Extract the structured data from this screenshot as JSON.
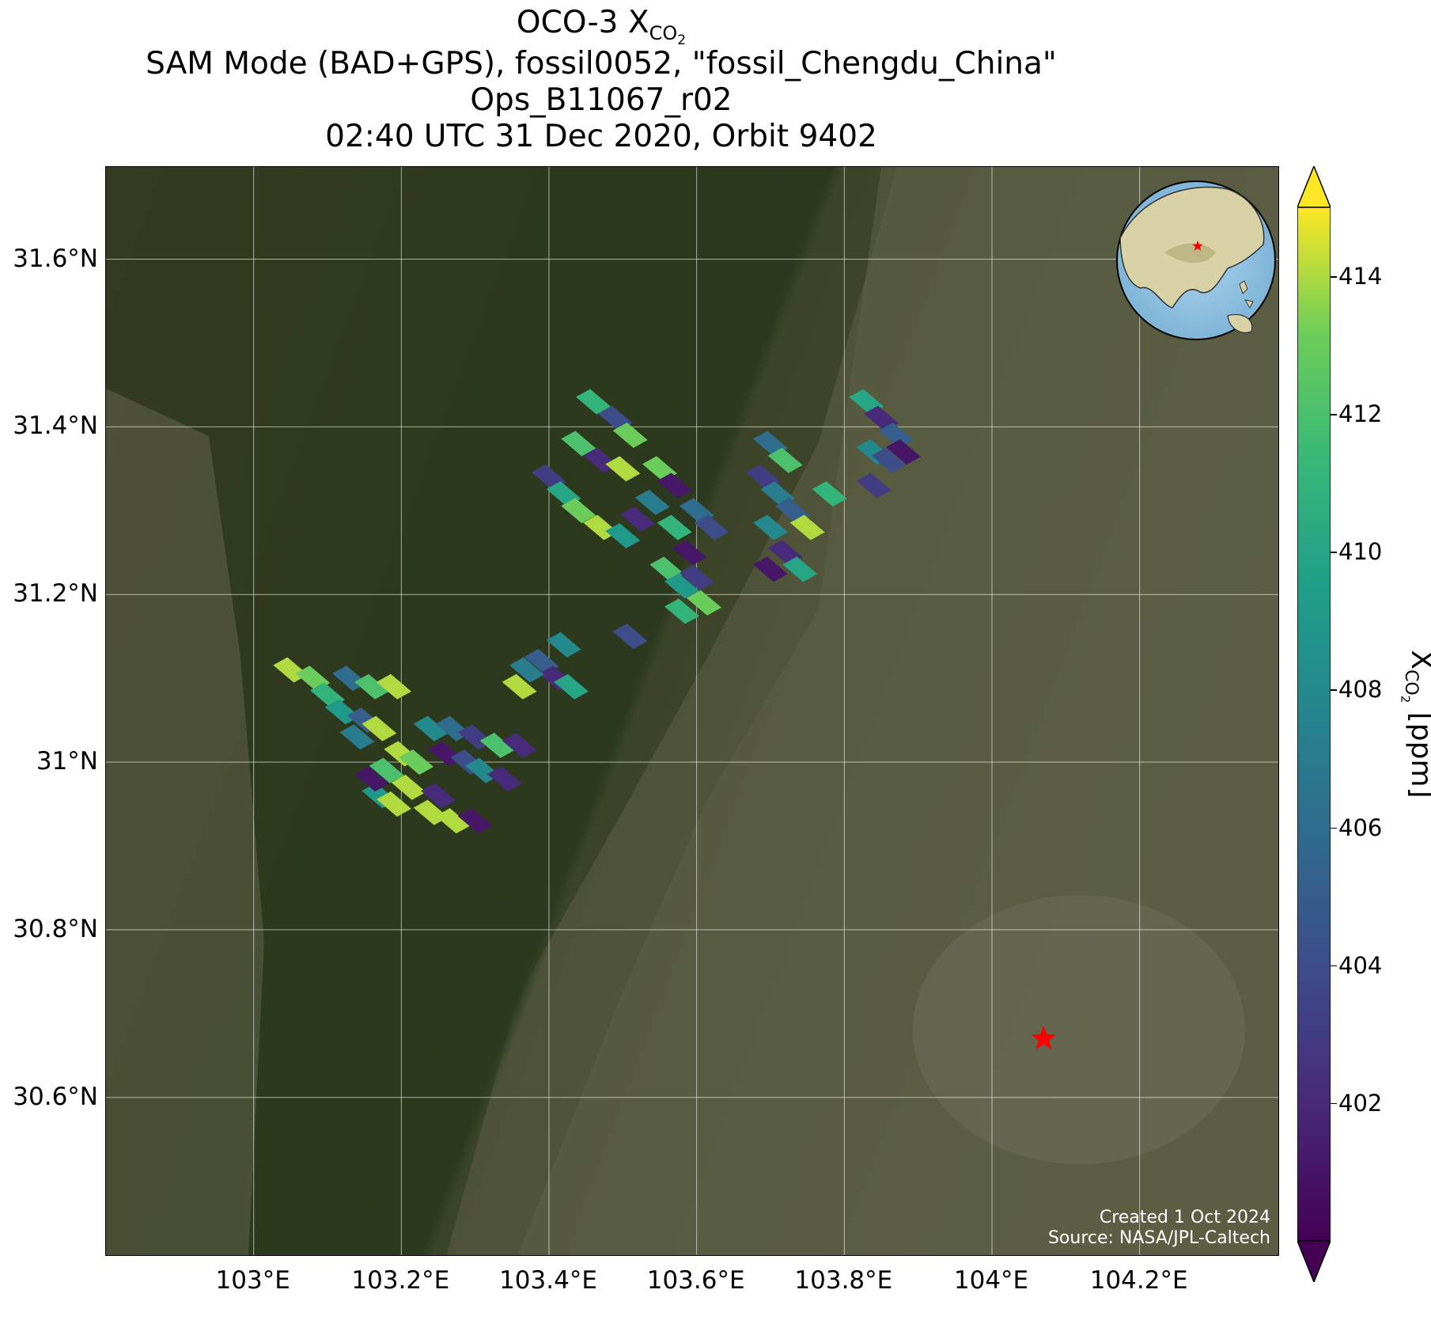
{
  "title": {
    "line1_main": "OCO-3 X",
    "line1_sub": "CO",
    "line1_subsub": "2",
    "line2": "SAM Mode (BAD+GPS), fossil0052, \"fossil_Chengdu_China\"",
    "line3": "Ops_B11067_r02",
    "line4": "02:40 UTC 31 Dec 2020, Orbit 9402"
  },
  "map": {
    "extent": {
      "lon_min": 102.8,
      "lon_max": 104.39,
      "lat_min": 30.41,
      "lat_max": 31.71
    },
    "lat_ticks": [
      {
        "value": 31.6,
        "label": "31.6°N"
      },
      {
        "value": 31.4,
        "label": "31.4°N"
      },
      {
        "value": 31.2,
        "label": "31.2°N"
      },
      {
        "value": 31.0,
        "label": "31°N"
      },
      {
        "value": 30.8,
        "label": "30.8°N"
      },
      {
        "value": 30.6,
        "label": "30.6°N"
      }
    ],
    "lon_ticks": [
      {
        "value": 103.0,
        "label": "103°E"
      },
      {
        "value": 103.2,
        "label": "103.2°E"
      },
      {
        "value": 103.4,
        "label": "103.4°E"
      },
      {
        "value": 103.6,
        "label": "103.6°E"
      },
      {
        "value": 103.8,
        "label": "103.8°E"
      },
      {
        "value": 104.0,
        "label": "104°E"
      },
      {
        "value": 104.2,
        "label": "104.2°E"
      }
    ],
    "target": {
      "name": "fossil_Chengdu_China",
      "lon": 104.07,
      "lat": 30.67,
      "color": "#ff0000",
      "marker": "star"
    },
    "credit_line1": "Created 1 Oct 2024",
    "credit_line2": "Source: NASA/JPL-Caltech",
    "inset_globe": {
      "marker_color": "#ff0000",
      "marker": "star"
    }
  },
  "colorbar": {
    "colormap": "viridis",
    "min": 400,
    "max": 415,
    "extend": "both",
    "ticks": [
      402,
      404,
      406,
      408,
      410,
      412,
      414
    ],
    "tick_labels": [
      "402",
      "404",
      "406",
      "408",
      "410",
      "412",
      "414"
    ],
    "label_main": "X",
    "label_sub": "CO",
    "label_subsub": "2",
    "label_unit": " [ppm]"
  },
  "chart_data": {
    "type": "heatmap",
    "variable": "XCO2",
    "units": "ppm",
    "soundings": [
      {
        "lon": 103.46,
        "lat": 31.43,
        "xco2": 411
      },
      {
        "lon": 103.49,
        "lat": 31.41,
        "xco2": 404
      },
      {
        "lon": 103.51,
        "lat": 31.39,
        "xco2": 413
      },
      {
        "lon": 103.44,
        "lat": 31.38,
        "xco2": 412
      },
      {
        "lon": 103.47,
        "lat": 31.36,
        "xco2": 402
      },
      {
        "lon": 103.5,
        "lat": 31.35,
        "xco2": 414
      },
      {
        "lon": 103.4,
        "lat": 31.34,
        "xco2": 403
      },
      {
        "lon": 103.42,
        "lat": 31.32,
        "xco2": 410
      },
      {
        "lon": 103.44,
        "lat": 31.3,
        "xco2": 413
      },
      {
        "lon": 103.47,
        "lat": 31.28,
        "xco2": 414
      },
      {
        "lon": 103.55,
        "lat": 31.35,
        "xco2": 413
      },
      {
        "lon": 103.57,
        "lat": 31.33,
        "xco2": 401
      },
      {
        "lon": 103.54,
        "lat": 31.31,
        "xco2": 407
      },
      {
        "lon": 103.52,
        "lat": 31.29,
        "xco2": 402
      },
      {
        "lon": 103.5,
        "lat": 31.27,
        "xco2": 409
      },
      {
        "lon": 103.57,
        "lat": 31.28,
        "xco2": 411
      },
      {
        "lon": 103.6,
        "lat": 31.3,
        "xco2": 406
      },
      {
        "lon": 103.62,
        "lat": 31.28,
        "xco2": 404
      },
      {
        "lon": 103.59,
        "lat": 31.25,
        "xco2": 401
      },
      {
        "lon": 103.56,
        "lat": 31.23,
        "xco2": 412
      },
      {
        "lon": 103.58,
        "lat": 31.21,
        "xco2": 409
      },
      {
        "lon": 103.6,
        "lat": 31.22,
        "xco2": 403
      },
      {
        "lon": 103.58,
        "lat": 31.18,
        "xco2": 411
      },
      {
        "lon": 103.61,
        "lat": 31.19,
        "xco2": 413
      },
      {
        "lon": 103.7,
        "lat": 31.38,
        "xco2": 406
      },
      {
        "lon": 103.72,
        "lat": 31.36,
        "xco2": 412
      },
      {
        "lon": 103.69,
        "lat": 31.34,
        "xco2": 403
      },
      {
        "lon": 103.71,
        "lat": 31.32,
        "xco2": 407
      },
      {
        "lon": 103.73,
        "lat": 31.3,
        "xco2": 405
      },
      {
        "lon": 103.75,
        "lat": 31.28,
        "xco2": 414
      },
      {
        "lon": 103.7,
        "lat": 31.28,
        "xco2": 408
      },
      {
        "lon": 103.72,
        "lat": 31.25,
        "xco2": 402
      },
      {
        "lon": 103.74,
        "lat": 31.23,
        "xco2": 410
      },
      {
        "lon": 103.7,
        "lat": 31.23,
        "xco2": 401
      },
      {
        "lon": 103.83,
        "lat": 31.43,
        "xco2": 410
      },
      {
        "lon": 103.85,
        "lat": 31.41,
        "xco2": 402
      },
      {
        "lon": 103.87,
        "lat": 31.39,
        "xco2": 405
      },
      {
        "lon": 103.84,
        "lat": 31.37,
        "xco2": 408
      },
      {
        "lon": 103.86,
        "lat": 31.36,
        "xco2": 404
      },
      {
        "lon": 103.88,
        "lat": 31.37,
        "xco2": 401
      },
      {
        "lon": 103.84,
        "lat": 31.33,
        "xco2": 403
      },
      {
        "lon": 103.78,
        "lat": 31.32,
        "xco2": 411
      },
      {
        "lon": 103.51,
        "lat": 31.15,
        "xco2": 404
      },
      {
        "lon": 103.42,
        "lat": 31.14,
        "xco2": 408
      },
      {
        "lon": 103.39,
        "lat": 31.12,
        "xco2": 405
      },
      {
        "lon": 103.41,
        "lat": 31.1,
        "xco2": 402
      },
      {
        "lon": 103.37,
        "lat": 31.11,
        "xco2": 407
      },
      {
        "lon": 103.36,
        "lat": 31.09,
        "xco2": 414
      },
      {
        "lon": 103.43,
        "lat": 31.09,
        "xco2": 410
      },
      {
        "lon": 103.05,
        "lat": 31.11,
        "xco2": 414
      },
      {
        "lon": 103.08,
        "lat": 31.1,
        "xco2": 413
      },
      {
        "lon": 103.1,
        "lat": 31.08,
        "xco2": 411
      },
      {
        "lon": 103.13,
        "lat": 31.1,
        "xco2": 406
      },
      {
        "lon": 103.16,
        "lat": 31.09,
        "xco2": 412
      },
      {
        "lon": 103.19,
        "lat": 31.09,
        "xco2": 414
      },
      {
        "lon": 103.12,
        "lat": 31.06,
        "xco2": 409
      },
      {
        "lon": 103.15,
        "lat": 31.05,
        "xco2": 405
      },
      {
        "lon": 103.17,
        "lat": 31.04,
        "xco2": 414
      },
      {
        "lon": 103.14,
        "lat": 31.03,
        "xco2": 407
      },
      {
        "lon": 103.24,
        "lat": 31.04,
        "xco2": 408
      },
      {
        "lon": 103.27,
        "lat": 31.04,
        "xco2": 406
      },
      {
        "lon": 103.3,
        "lat": 31.03,
        "xco2": 403
      },
      {
        "lon": 103.33,
        "lat": 31.02,
        "xco2": 412
      },
      {
        "lon": 103.36,
        "lat": 31.02,
        "xco2": 402
      },
      {
        "lon": 103.26,
        "lat": 31.01,
        "xco2": 401
      },
      {
        "lon": 103.29,
        "lat": 31.0,
        "xco2": 404
      },
      {
        "lon": 103.31,
        "lat": 30.99,
        "xco2": 408
      },
      {
        "lon": 103.34,
        "lat": 30.98,
        "xco2": 402
      },
      {
        "lon": 103.2,
        "lat": 31.01,
        "xco2": 414
      },
      {
        "lon": 103.22,
        "lat": 31.0,
        "xco2": 413
      },
      {
        "lon": 103.18,
        "lat": 30.99,
        "xco2": 412
      },
      {
        "lon": 103.21,
        "lat": 30.97,
        "xco2": 414
      },
      {
        "lon": 103.17,
        "lat": 30.96,
        "xco2": 409
      },
      {
        "lon": 103.19,
        "lat": 30.95,
        "xco2": 414
      },
      {
        "lon": 103.16,
        "lat": 30.98,
        "xco2": 401
      },
      {
        "lon": 103.24,
        "lat": 30.94,
        "xco2": 414
      },
      {
        "lon": 103.27,
        "lat": 30.93,
        "xco2": 414
      },
      {
        "lon": 103.3,
        "lat": 30.93,
        "xco2": 401
      },
      {
        "lon": 103.25,
        "lat": 30.96,
        "xco2": 402
      }
    ]
  }
}
